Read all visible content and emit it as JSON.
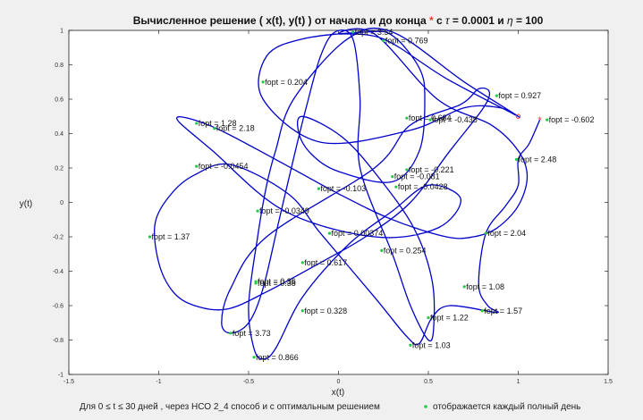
{
  "chart_data": {
    "type": "line",
    "title_parts": [
      "Вычисленное решение ( x(t), y(t) ) от начала и до конца ",
      "*",
      " с ",
      "τ",
      " = 0.0001 и ",
      "η",
      " = 100"
    ],
    "xlabel": "x(t)",
    "ylabel": "y(t)",
    "xlim": [
      -1.5,
      1.5
    ],
    "ylim": [
      -1,
      1
    ],
    "xticks": [
      "-1.5",
      "-1",
      "-0.5",
      "0",
      "0.5",
      "1",
      "1.5"
    ],
    "yticks": [
      "-1",
      "-0.8",
      "-0.6",
      "-0.4",
      "-0.2",
      "0",
      "0.2",
      "0.4",
      "0.6",
      "0.8",
      "1"
    ],
    "grid": false,
    "series": [
      {
        "color": "#0000cc",
        "points": [
          [
            1.12,
            0.48
          ],
          [
            1.06,
            0.34
          ],
          [
            1.0,
            0.25
          ],
          [
            1.0,
            0.1
          ],
          [
            0.93,
            -0.02
          ],
          [
            0.82,
            -0.18
          ],
          [
            0.78,
            -0.48
          ],
          [
            0.83,
            -0.6
          ],
          [
            0.88,
            -0.64
          ],
          [
            0.62,
            -0.6
          ],
          [
            0.52,
            -0.67
          ],
          [
            0.45,
            -0.82
          ],
          [
            0.38,
            -0.78
          ],
          [
            0.2,
            -0.55
          ],
          [
            -0.1,
            -0.18
          ],
          [
            -0.28,
            0.05
          ],
          [
            -0.6,
            0.22
          ],
          [
            -0.8,
            0.16
          ],
          [
            -0.93,
            0.05
          ],
          [
            -1.02,
            -0.12
          ],
          [
            -1.0,
            -0.35
          ],
          [
            -0.92,
            -0.52
          ],
          [
            -0.8,
            -0.6
          ],
          [
            -0.62,
            -0.62
          ],
          [
            -0.4,
            -0.52
          ],
          [
            -0.1,
            -0.35
          ],
          [
            0.15,
            -0.2
          ],
          [
            0.4,
            0.0
          ],
          [
            0.62,
            0.3
          ],
          [
            0.8,
            0.54
          ],
          [
            0.84,
            0.64
          ],
          [
            0.78,
            0.66
          ],
          [
            0.68,
            0.57
          ],
          [
            0.4,
            0.45
          ],
          [
            0.2,
            0.2
          ],
          [
            -0.4,
            -0.2
          ],
          [
            -0.6,
            -0.5
          ],
          [
            -0.65,
            -0.7
          ],
          [
            -0.6,
            -0.76
          ],
          [
            -0.5,
            -0.7
          ],
          [
            -0.42,
            -0.5
          ],
          [
            -0.33,
            -0.1
          ],
          [
            -0.24,
            0.3
          ],
          [
            -0.18,
            0.55
          ],
          [
            -0.1,
            0.85
          ],
          [
            -0.02,
            0.99
          ],
          [
            0.08,
            0.95
          ],
          [
            0.12,
            0.6
          ],
          [
            0.12,
            0.2
          ],
          [
            0.3,
            -0.3
          ],
          [
            0.4,
            -0.6
          ],
          [
            0.5,
            -0.8
          ],
          [
            0.53,
            -0.72
          ],
          [
            0.52,
            -0.45
          ],
          [
            0.42,
            -0.15
          ],
          [
            0.22,
            0.15
          ],
          [
            0.02,
            0.38
          ],
          [
            -0.2,
            0.5
          ],
          [
            -0.22,
            0.4
          ],
          [
            -0.15,
            0.28
          ],
          [
            0.0,
            0.18
          ],
          [
            0.3,
            0.12
          ],
          [
            0.45,
            0.3
          ],
          [
            0.48,
            0.6
          ],
          [
            0.45,
            0.78
          ],
          [
            0.3,
            0.97
          ],
          [
            0.15,
            0.99
          ],
          [
            -0.2,
            0.95
          ],
          [
            -0.4,
            0.85
          ],
          [
            -0.42,
            0.6
          ],
          [
            -0.1,
            0.35
          ],
          [
            0.4,
            0.42
          ],
          [
            0.7,
            0.55
          ],
          [
            0.9,
            0.55
          ],
          [
            1.0,
            0.5
          ],
          [
            0.7,
            0.7
          ],
          [
            0.3,
            0.99
          ],
          [
            0.05,
            0.95
          ],
          [
            -0.25,
            0.6
          ],
          [
            -0.35,
            0.3
          ],
          [
            -0.4,
            0.1
          ],
          [
            -0.45,
            -0.2
          ],
          [
            -0.5,
            -0.6
          ],
          [
            -0.47,
            -0.85
          ],
          [
            -0.42,
            -0.91
          ],
          [
            -0.35,
            -0.85
          ],
          [
            -0.2,
            -0.55
          ],
          [
            0.05,
            -0.25
          ],
          [
            0.3,
            -0.05
          ],
          [
            0.5,
            0.1
          ],
          [
            0.68,
            0.02
          ],
          [
            0.55,
            -0.15
          ],
          [
            0.2,
            -0.2
          ],
          [
            -0.3,
            -0.05
          ],
          [
            -0.7,
            0.3
          ],
          [
            -0.9,
            0.49
          ],
          [
            -0.7,
            0.44
          ],
          [
            -0.35,
            0.25
          ],
          [
            0.0,
            0.05
          ],
          [
            0.3,
            -0.1
          ],
          [
            0.6,
            -0.2
          ],
          [
            0.75,
            -0.2
          ],
          [
            0.88,
            -0.15
          ],
          [
            1.0,
            -0.02
          ],
          [
            1.05,
            0.15
          ],
          [
            1.0,
            0.3
          ],
          [
            0.85,
            0.45
          ],
          [
            0.55,
            0.6
          ],
          [
            0.2,
            0.98
          ],
          [
            0.0,
            0.98
          ],
          [
            0.25,
            0.95
          ],
          [
            0.6,
            0.72
          ],
          [
            1.0,
            0.5
          ]
        ]
      }
    ],
    "markers": [
      {
        "type": "start",
        "color": "#ff3333",
        "x": 1.12,
        "y": 0.48
      },
      {
        "type": "end",
        "color": "#ff3333",
        "x": 1.0,
        "y": 0.5
      }
    ],
    "annotations": [
      {
        "text": "fopt = 3.54",
        "x": 0.08,
        "y": 0.99
      },
      {
        "text": "fopt = 0.769",
        "x": 0.25,
        "y": 0.94
      },
      {
        "text": "fopt = 0.204",
        "x": -0.42,
        "y": 0.7
      },
      {
        "text": "fopt = 0.927",
        "x": 0.88,
        "y": 0.62
      },
      {
        "text": "fopt = 0.684",
        "x": 0.38,
        "y": 0.49
      },
      {
        "text": "fopt = -0.438",
        "x": 0.51,
        "y": 0.48
      },
      {
        "text": "fopt = -0.602",
        "x": 1.16,
        "y": 0.48
      },
      {
        "text": "fopt = 1.28",
        "x": -0.79,
        "y": 0.46
      },
      {
        "text": "fopt = 2.18",
        "x": -0.69,
        "y": 0.43
      },
      {
        "text": "fopt = 2.48",
        "x": 0.99,
        "y": 0.25
      },
      {
        "text": "fopt = -0.0454",
        "x": -0.79,
        "y": 0.21
      },
      {
        "text": "fopt = -0.221",
        "x": 0.38,
        "y": 0.19
      },
      {
        "text": "fopt = -0.081",
        "x": 0.3,
        "y": 0.15
      },
      {
        "text": "fopt = -0.0428",
        "x": 0.32,
        "y": 0.09
      },
      {
        "text": "fopt = -0.103",
        "x": -0.11,
        "y": 0.08
      },
      {
        "text": "fopt = -0.0349",
        "x": -0.45,
        "y": -0.05
      },
      {
        "text": "fopt = 1.37",
        "x": -1.05,
        "y": -0.2
      },
      {
        "text": "fopt = 0.00374",
        "x": -0.05,
        "y": -0.18
      },
      {
        "text": "fopt = 2.04",
        "x": 0.82,
        "y": -0.18
      },
      {
        "text": "fopt = 0.254",
        "x": 0.24,
        "y": -0.28
      },
      {
        "text": "fopt = 0.617",
        "x": -0.2,
        "y": -0.35
      },
      {
        "text": "fopt = 0.36",
        "x": -0.46,
        "y": -0.46
      },
      {
        "text": "fopt = 0.38",
        "x": -0.46,
        "y": -0.47
      },
      {
        "text": "fopt = 1.08",
        "x": 0.7,
        "y": -0.49
      },
      {
        "text": "fopt = 0.328",
        "x": -0.2,
        "y": -0.63
      },
      {
        "text": "fopt = 1.57",
        "x": 0.8,
        "y": -0.63
      },
      {
        "text": "fopt = 1.22",
        "x": 0.5,
        "y": -0.67
      },
      {
        "text": "fopt = 3.73",
        "x": -0.6,
        "y": -0.76
      },
      {
        "text": "fopt = 1.03",
        "x": 0.4,
        "y": -0.83
      },
      {
        "text": "fopt = 0.866",
        "x": -0.47,
        "y": -0.9
      }
    ],
    "caption": {
      "parts": [
        "Для 0 ",
        "≤",
        " t ",
        "≤",
        " 30 дней , через НСО 2_4 способ и с оптимальным решением"
      ],
      "marker_color": "#22cc44",
      "marker_label": "отображается каждый полный день"
    }
  }
}
